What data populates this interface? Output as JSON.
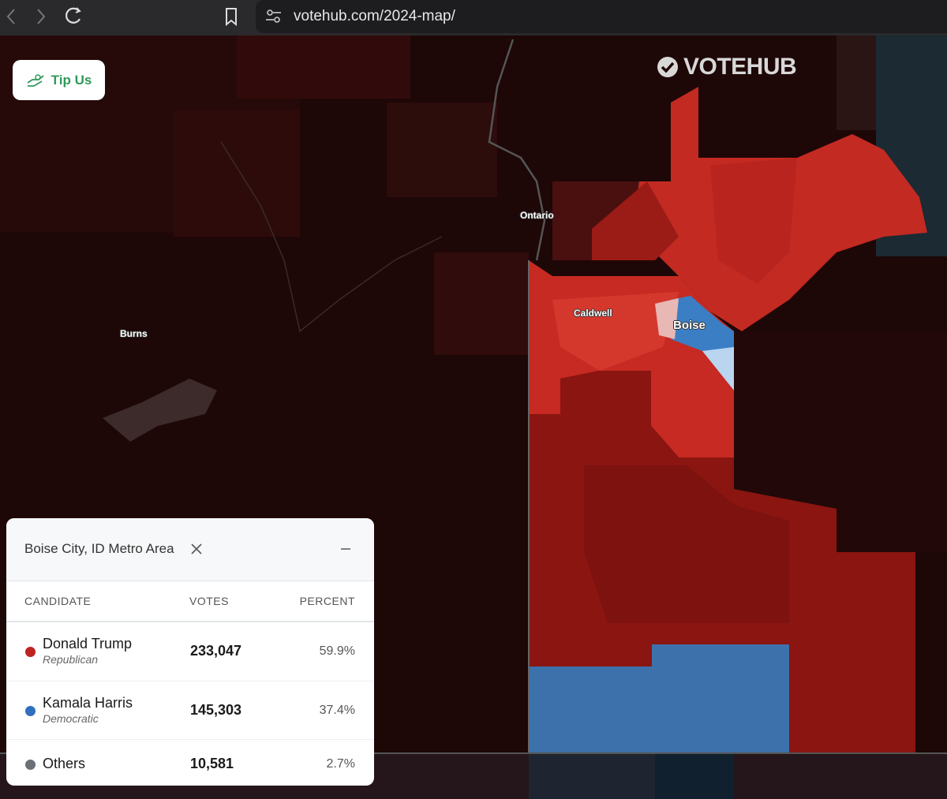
{
  "browser": {
    "url": "votehub.com/2024-map/"
  },
  "logo": "VOTEHUB",
  "tip_button": "Tip Us",
  "map_labels": {
    "ontario": "Ontario",
    "burns": "Burns",
    "caldwell": "Caldwell",
    "boise": "Boise"
  },
  "panel": {
    "title": "Boise City, ID Metro Area",
    "columns": [
      "CANDIDATE",
      "VOTES",
      "PERCENT"
    ],
    "rows": [
      {
        "name": "Donald Trump",
        "party": "Republican",
        "votes": "233,047",
        "percent": "59.9%",
        "color": "#c0221f"
      },
      {
        "name": "Kamala Harris",
        "party": "Democratic",
        "votes": "145,303",
        "percent": "37.4%",
        "color": "#2f6fbd"
      },
      {
        "name": "Others",
        "votes": "10,581",
        "percent": "2.7%",
        "color": "#6b6f76"
      }
    ]
  }
}
